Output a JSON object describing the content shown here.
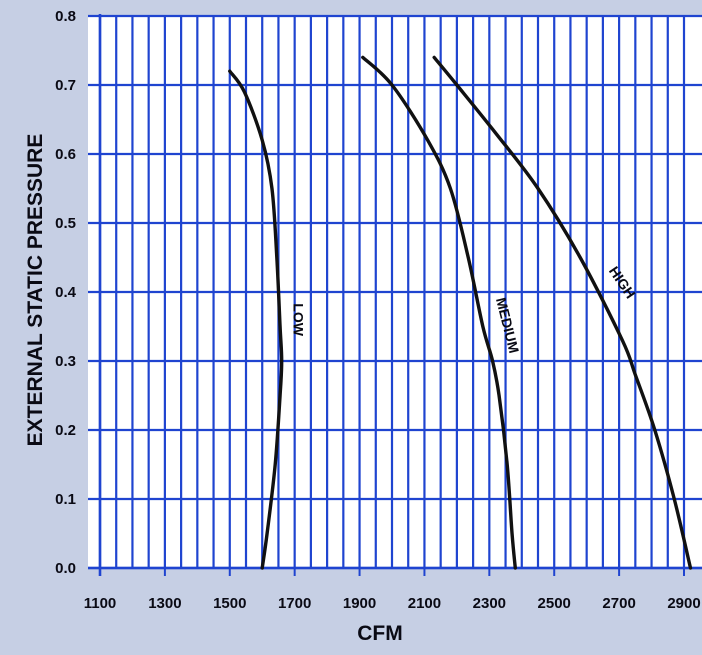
{
  "chart_data": {
    "type": "line",
    "title": "",
    "xlabel": "CFM",
    "ylabel": "EXTERNAL STATIC PRESSURE",
    "xlim": [
      1100,
      2900
    ],
    "ylim": [
      0.0,
      0.8
    ],
    "x_ticks": [
      "1100",
      "1300",
      "1500",
      "1700",
      "1900",
      "2100",
      "2300",
      "2500",
      "2700",
      "2900"
    ],
    "y_ticks": [
      "0.0",
      "0.1",
      "0.2",
      "0.3",
      "0.4",
      "0.5",
      "0.6",
      "0.7",
      "0.8"
    ],
    "grid": true,
    "legend": "none",
    "colors": {
      "background": "#c6cfe4",
      "plot_area": "#ffffff",
      "grid": "#1f44d0",
      "curve": "#111111"
    },
    "series": [
      {
        "name": "LOW",
        "points": [
          [
            1600,
            0.0
          ],
          [
            1615,
            0.05
          ],
          [
            1640,
            0.15
          ],
          [
            1655,
            0.25
          ],
          [
            1660,
            0.3
          ],
          [
            1655,
            0.35
          ],
          [
            1645,
            0.45
          ],
          [
            1630,
            0.55
          ],
          [
            1600,
            0.62
          ],
          [
            1545,
            0.69
          ],
          [
            1500,
            0.72
          ]
        ]
      },
      {
        "name": "MEDIUM",
        "points": [
          [
            2380,
            0.0
          ],
          [
            2370,
            0.05
          ],
          [
            2355,
            0.15
          ],
          [
            2330,
            0.25
          ],
          [
            2310,
            0.3
          ],
          [
            2280,
            0.35
          ],
          [
            2235,
            0.45
          ],
          [
            2180,
            0.55
          ],
          [
            2110,
            0.62
          ],
          [
            2000,
            0.7
          ],
          [
            1910,
            0.74
          ]
        ]
      },
      {
        "name": "HIGH",
        "points": [
          [
            2920,
            0.0
          ],
          [
            2870,
            0.1
          ],
          [
            2810,
            0.2
          ],
          [
            2750,
            0.28
          ],
          [
            2710,
            0.33
          ],
          [
            2580,
            0.45
          ],
          [
            2450,
            0.55
          ],
          [
            2320,
            0.63
          ],
          [
            2200,
            0.7
          ],
          [
            2130,
            0.74
          ]
        ]
      }
    ]
  }
}
